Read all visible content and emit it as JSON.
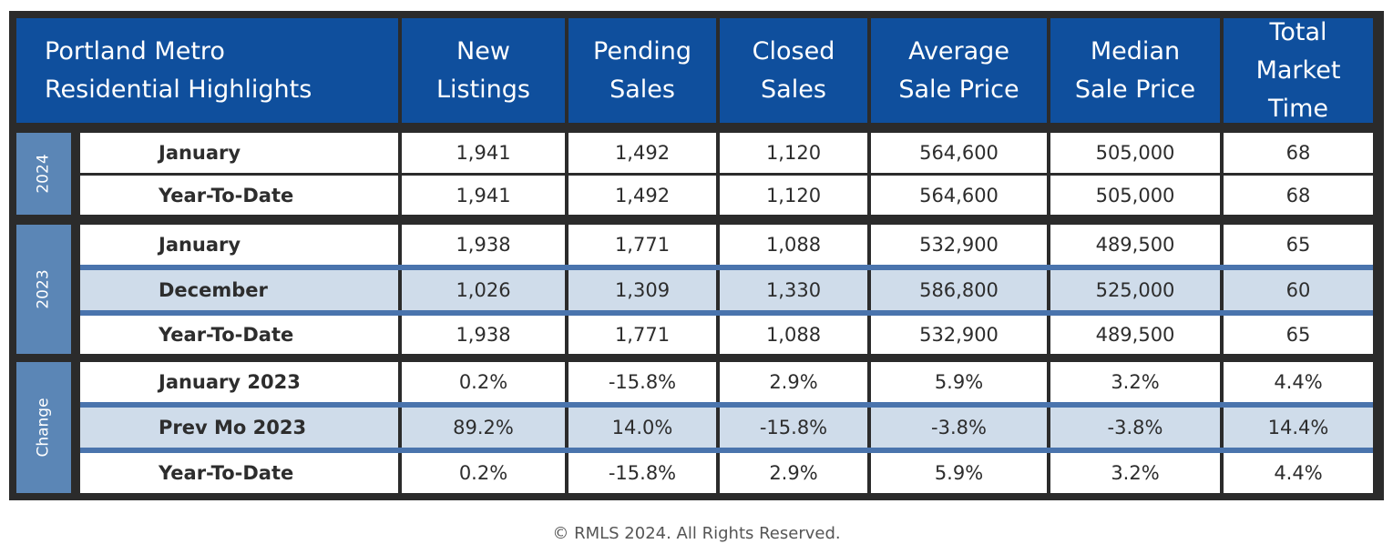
{
  "header": {
    "title_line1": "Portland Metro",
    "title_line2": "Residential Highlights",
    "columns": [
      {
        "line1": "New",
        "line2": "Listings"
      },
      {
        "line1": "Pending",
        "line2": "Sales"
      },
      {
        "line1": "Closed",
        "line2": "Sales"
      },
      {
        "line1": "Average",
        "line2": "Sale Price"
      },
      {
        "line1": "Median",
        "line2": "Sale Price"
      },
      {
        "line1": "Total",
        "line2": "Market",
        "line3": "Time"
      }
    ]
  },
  "groups": [
    {
      "label": "2024",
      "rows": [
        {
          "name": "January",
          "values": [
            "1,941",
            "1,492",
            "1,120",
            "564,600",
            "505,000",
            "68"
          ]
        },
        {
          "name": "Year-To-Date",
          "values": [
            "1,941",
            "1,492",
            "1,120",
            "564,600",
            "505,000",
            "68"
          ]
        }
      ]
    },
    {
      "label": "2023",
      "rows": [
        {
          "name": "January",
          "values": [
            "1,938",
            "1,771",
            "1,088",
            "532,900",
            "489,500",
            "65"
          ]
        },
        {
          "name": "December",
          "values": [
            "1,026",
            "1,309",
            "1,330",
            "586,800",
            "525,000",
            "60"
          ]
        },
        {
          "name": "Year-To-Date",
          "values": [
            "1,938",
            "1,771",
            "1,088",
            "532,900",
            "489,500",
            "65"
          ]
        }
      ]
    },
    {
      "label": "Change",
      "rows": [
        {
          "name": "January 2023",
          "values": [
            "0.2%",
            "-15.8%",
            "2.9%",
            "5.9%",
            "3.2%",
            "4.4%"
          ]
        },
        {
          "name": "Prev Mo 2023",
          "values": [
            "89.2%",
            "14.0%",
            "-15.8%",
            "-3.8%",
            "-3.8%",
            "14.4%"
          ]
        },
        {
          "name": "Year-To-Date",
          "values": [
            "0.2%",
            "-15.8%",
            "2.9%",
            "5.9%",
            "3.2%",
            "4.4%"
          ]
        }
      ]
    }
  ],
  "footer": "© RMLS 2024. All Rights Reserved.",
  "colors": {
    "header_bg": "#0f4f9d",
    "side_label_bg": "#5b86b6",
    "shaded_row_bg": "#cfdcea",
    "divider_blue": "#4a74ad",
    "frame": "#2b2b2b"
  }
}
